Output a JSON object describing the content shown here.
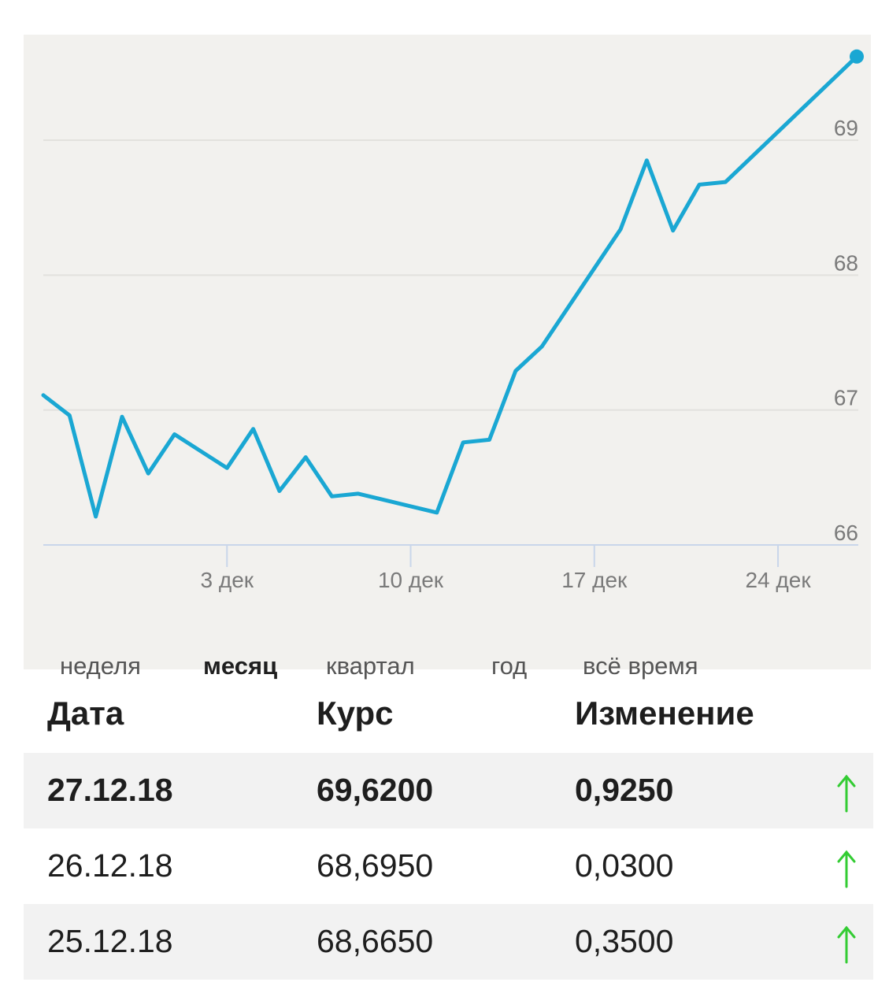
{
  "chart_data": {
    "type": "line",
    "x": [
      "26.11",
      "27.11",
      "28.11",
      "29.11",
      "30.11",
      "01.12",
      "02.12",
      "03.12",
      "04.12",
      "05.12",
      "06.12",
      "07.12",
      "08.12",
      "09.12",
      "10.12",
      "11.12",
      "12.12",
      "13.12",
      "14.12",
      "15.12",
      "16.12",
      "17.12",
      "18.12",
      "19.12",
      "20.12",
      "21.12",
      "22.12",
      "23.12",
      "24.12",
      "25.12",
      "26.12",
      "27.12"
    ],
    "points": [
      {
        "x": "26.11",
        "y": 67.11
      },
      {
        "x": "27.11",
        "y": 66.96
      },
      {
        "x": "28.11",
        "y": 66.21
      },
      {
        "x": "29.11",
        "y": 66.95
      },
      {
        "x": "30.11",
        "y": 66.53
      },
      {
        "x": "01.12",
        "y": 66.82
      },
      {
        "x": "03.12",
        "y": 66.57
      },
      {
        "x": "04.12",
        "y": 66.86
      },
      {
        "x": "05.12",
        "y": 66.4
      },
      {
        "x": "06.12",
        "y": 66.65
      },
      {
        "x": "07.12",
        "y": 66.36
      },
      {
        "x": "08.12",
        "y": 66.38
      },
      {
        "x": "11.12",
        "y": 66.24
      },
      {
        "x": "12.12",
        "y": 66.76
      },
      {
        "x": "13.12",
        "y": 66.78
      },
      {
        "x": "14.12",
        "y": 67.29
      },
      {
        "x": "15.12",
        "y": 67.47
      },
      {
        "x": "18.12",
        "y": 68.34
      },
      {
        "x": "19.12",
        "y": 68.85
      },
      {
        "x": "20.12",
        "y": 68.33
      },
      {
        "x": "21.12",
        "y": 68.67
      },
      {
        "x": "22.12",
        "y": 68.69
      },
      {
        "x": "27.12",
        "y": 69.62
      }
    ],
    "y_ticks": [
      "66",
      "67",
      "68",
      "69"
    ],
    "y_tick_values": [
      66,
      67,
      68,
      69
    ],
    "x_ticks": [
      {
        "label": "3 дек",
        "x": "03.12"
      },
      {
        "label": "10 дек",
        "x": "10.12"
      },
      {
        "label": "17 дек",
        "x": "17.12"
      },
      {
        "label": "24 дек",
        "x": "24.12"
      }
    ],
    "ylim": [
      66,
      69.7
    ],
    "line_color": "#1aa7d3",
    "grid": true,
    "y_axis_position": "right"
  },
  "period_tabs": [
    {
      "label": "неделя",
      "active": false
    },
    {
      "label": "месяц",
      "active": true
    },
    {
      "label": "квартал",
      "active": false
    },
    {
      "label": "год",
      "active": false
    },
    {
      "label": "всё время",
      "active": false
    }
  ],
  "table": {
    "headers": {
      "date": "Дата",
      "rate": "Курс",
      "change": "Изменение"
    },
    "rows": [
      {
        "date": "27.12.18",
        "rate": "69,6200",
        "change": "0,9250",
        "trend": "up"
      },
      {
        "date": "26.12.18",
        "rate": "68,6950",
        "change": "0,0300",
        "trend": "up"
      },
      {
        "date": "25.12.18",
        "rate": "68,6650",
        "change": "0,3500",
        "trend": "up"
      }
    ],
    "trend_color": "#33cc33"
  }
}
